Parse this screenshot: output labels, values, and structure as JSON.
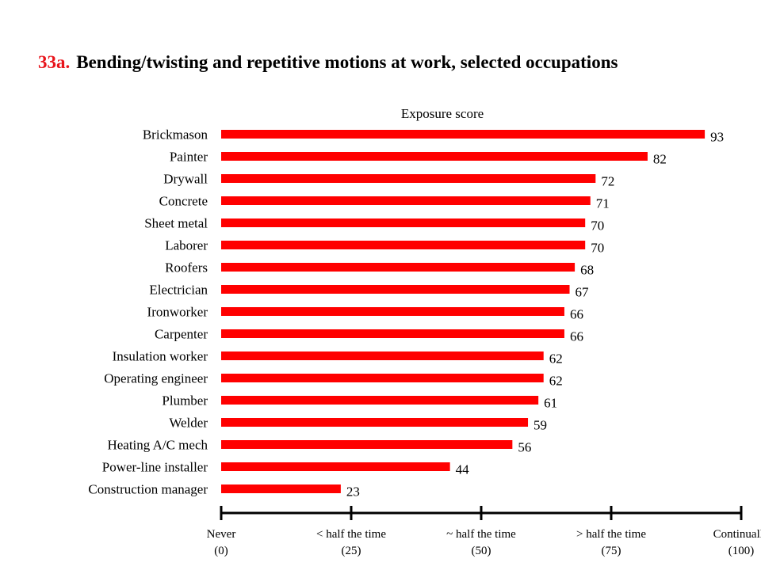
{
  "slide": {
    "title_number": "33a.",
    "title_text": "Bending/twisting and repetitive motions at work, selected occupations"
  },
  "chart_data": {
    "type": "bar",
    "orientation": "horizontal",
    "subtitle": "Exposure score",
    "categories": [
      "Brickmason",
      "Painter",
      "Drywall",
      "Concrete",
      "Sheet metal",
      "Laborer",
      "Roofers",
      "Electrician",
      "Ironworker",
      "Carpenter",
      "Insulation worker",
      "Operating engineer",
      "Plumber",
      "Welder",
      "Heating A/C mech",
      "Power-line installer",
      "Construction manager"
    ],
    "values": [
      93,
      82,
      72,
      71,
      70,
      70,
      68,
      67,
      66,
      66,
      62,
      62,
      61,
      59,
      56,
      44,
      23
    ],
    "xlim": [
      0,
      100
    ],
    "x_ticks": [
      {
        "value": 0,
        "label": "Never",
        "sublabel": "(0)"
      },
      {
        "value": 25,
        "label": "< half the time",
        "sublabel": "(25)"
      },
      {
        "value": 50,
        "label": "~ half the time",
        "sublabel": "(50)"
      },
      {
        "value": 75,
        "label": "> half the time",
        "sublabel": "(75)"
      },
      {
        "value": 100,
        "label": "Continually",
        "sublabel": "(100)"
      }
    ],
    "bar_color": "#ff0000",
    "accent_color": "#e8141b",
    "grid": false,
    "legend": "none"
  }
}
